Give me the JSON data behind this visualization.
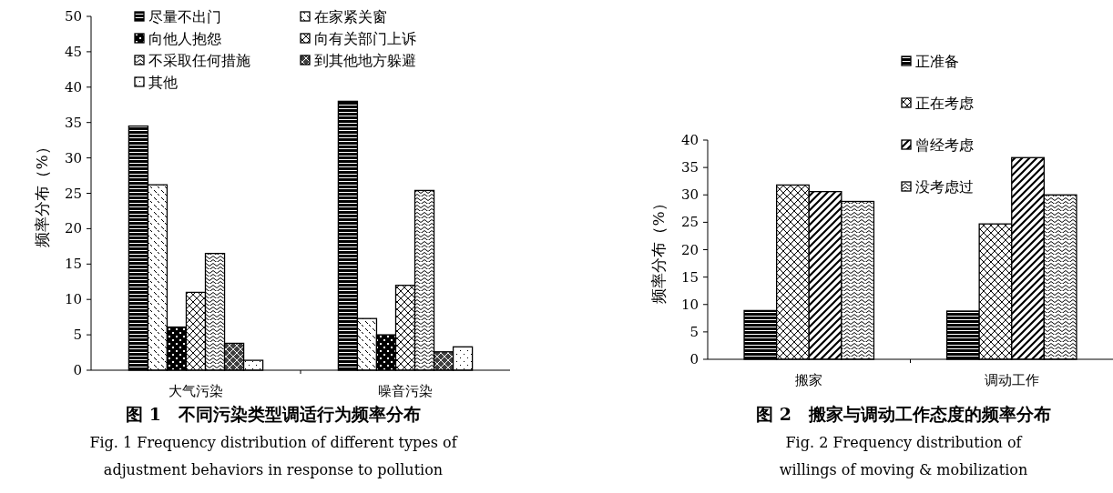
{
  "chart_data": [
    {
      "type": "bar",
      "title": "图 1　不同污染类型调适行为频率分布",
      "subtitle": "Fig. 1 Frequency distribution of different types of adjustment behaviors in response to pollution",
      "ylabel": "频率分布（%）",
      "categories": [
        "大气污染",
        "噪音污染"
      ],
      "ylim": [
        0,
        50
      ],
      "yticks": [
        0,
        5,
        10,
        15,
        20,
        25,
        30,
        35,
        40,
        45,
        50
      ],
      "legend": "top left",
      "grid": false,
      "series": [
        {
          "name": "尽量不出门",
          "color": "#000000",
          "values": [
            34.5,
            38
          ]
        },
        {
          "name": "在家紧关窗",
          "color": "#000000",
          "values": [
            26.2,
            7.3
          ]
        },
        {
          "name": "向他人抱怨",
          "color": "#000000",
          "values": [
            6.1,
            5
          ]
        },
        {
          "name": "向有关部门上诉",
          "color": "#000000",
          "values": [
            11,
            12
          ]
        },
        {
          "name": "不采取任何措施",
          "color": "#000000",
          "values": [
            16.5,
            25.4
          ]
        },
        {
          "name": "到其他地方躲避",
          "color": "#000000",
          "values": [
            3.8,
            2.6
          ]
        },
        {
          "name": "其他",
          "color": "#000000",
          "values": [
            1.4,
            3.3
          ]
        }
      ]
    },
    {
      "type": "bar",
      "title": "图 2　搬家与调动工作态度的频率分布",
      "subtitle": "Fig. 2 Frequency distribution of willings of moving & mobilization",
      "ylabel": "频率分布（%）",
      "categories": [
        "搬家",
        "调动工作"
      ],
      "ylim": [
        0,
        40
      ],
      "yticks": [
        0,
        5,
        10,
        15,
        20,
        25,
        30,
        35,
        40
      ],
      "legend": "top right",
      "grid": false,
      "series": [
        {
          "name": "正准备",
          "color": "#000000",
          "values": [
            8.9,
            8.8
          ]
        },
        {
          "name": "正在考虑",
          "color": "#000000",
          "values": [
            31.8,
            24.7
          ]
        },
        {
          "name": "曾经考虑",
          "color": "#000000",
          "values": [
            30.6,
            36.8
          ]
        },
        {
          "name": "没考虑过",
          "color": "#000000",
          "values": [
            28.8,
            30
          ]
        }
      ]
    }
  ]
}
